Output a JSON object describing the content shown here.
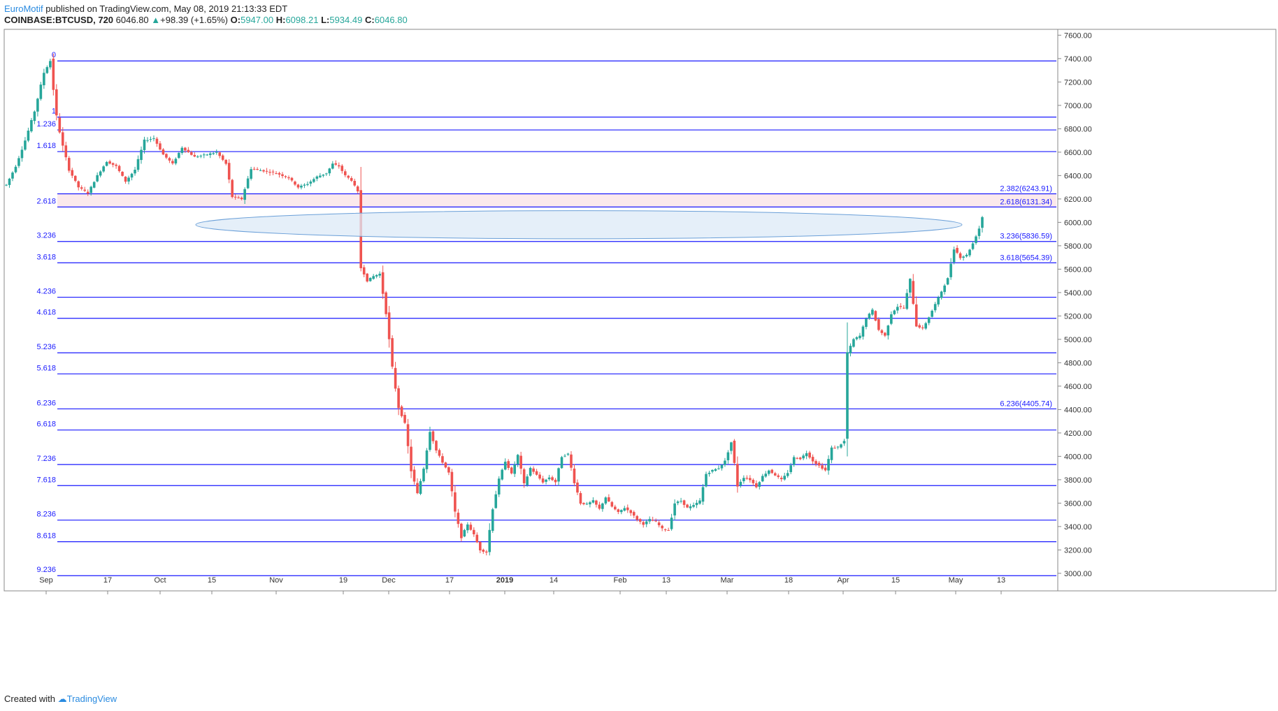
{
  "header": {
    "author": "EuroMotif",
    "published": "published on TradingView.com, May 08, 2019 21:13:33 EDT",
    "symbol": "COINBASE:BTCUSD, 720",
    "last": "6046.80",
    "change": "+98.39 (+1.65%)",
    "open_label": "O:",
    "open": "5947.00",
    "high_label": "H:",
    "high": "6098.21",
    "low_label": "L:",
    "low": "5934.49",
    "close_label": "C:",
    "close": "6046.80"
  },
  "footer": {
    "created_with": "Created with",
    "brand": "TradingView"
  },
  "colors": {
    "up": "#26a69a",
    "down": "#ef5350",
    "fib_line": "#1a1aff",
    "zone_fill": "#fbe9ec",
    "ellipse_fill": "#dceaf7",
    "ellipse_stroke": "#6a9fd8"
  },
  "chart_data": {
    "type": "candlestick",
    "ylim": [
      2850,
      7650
    ],
    "yticks": [
      "7600.00",
      "7400.00",
      "7200.00",
      "7000.00",
      "6800.00",
      "6600.00",
      "6400.00",
      "6200.00",
      "6000.00",
      "5800.00",
      "5600.00",
      "5400.00",
      "5200.00",
      "5000.00",
      "4800.00",
      "4600.00",
      "4400.00",
      "4200.00",
      "4000.00",
      "3800.00",
      "3600.00",
      "3400.00",
      "3200.00",
      "3000.00"
    ],
    "xticks": [
      "Sep",
      "17",
      "Oct",
      "15",
      "Nov",
      "19",
      "Dec",
      "17",
      "2019",
      "14",
      "Feb",
      "13",
      "Mar",
      "18",
      "Apr",
      "15",
      "May",
      "13"
    ],
    "fib_levels": [
      {
        "label": "0",
        "price": 7380
      },
      {
        "label": "1",
        "price": 6900
      },
      {
        "label": "1.236",
        "price": 6790
      },
      {
        "label": "1.618",
        "price": 6605
      },
      {
        "label": "2.618",
        "price": 6131.34
      },
      {
        "label": "3.236",
        "price": 5836.59
      },
      {
        "label": "3.618",
        "price": 5654.39
      },
      {
        "label": "4.236",
        "price": 5360
      },
      {
        "label": "4.618",
        "price": 5180
      },
      {
        "label": "5.236",
        "price": 4885
      },
      {
        "label": "5.618",
        "price": 4705
      },
      {
        "label": "6.236",
        "price": 4405.74
      },
      {
        "label": "6.618",
        "price": 4225
      },
      {
        "label": "7.236",
        "price": 3930
      },
      {
        "label": "7.618",
        "price": 3750
      },
      {
        "label": "8.236",
        "price": 3455
      },
      {
        "label": "8.618",
        "price": 3270
      },
      {
        "label": "9.236",
        "price": 2980
      }
    ],
    "right_labels": [
      {
        "text": "2.382(6243.91)",
        "price": 6243.91
      },
      {
        "text": "2.618(6131.34)",
        "price": 6131.34
      },
      {
        "text": "3.236(5836.59)",
        "price": 5836.59
      },
      {
        "text": "3.618(5654.39)",
        "price": 5654.39
      },
      {
        "text": "6.236(4405.74)",
        "price": 4405.74
      }
    ],
    "zone": {
      "from": 6131.34,
      "to": 6243.91
    },
    "ellipse": {
      "price_top": 6100,
      "price_bottom": 5860
    },
    "path": [
      [
        0,
        6320
      ],
      [
        3,
        6480
      ],
      [
        6,
        6700
      ],
      [
        9,
        6950
      ],
      [
        12,
        7280
      ],
      [
        14,
        7380
      ],
      [
        16,
        6900
      ],
      [
        18,
        6650
      ],
      [
        20,
        6450
      ],
      [
        23,
        6300
      ],
      [
        26,
        6250
      ],
      [
        29,
        6400
      ],
      [
        32,
        6520
      ],
      [
        35,
        6480
      ],
      [
        38,
        6350
      ],
      [
        41,
        6450
      ],
      [
        44,
        6700
      ],
      [
        47,
        6720
      ],
      [
        50,
        6580
      ],
      [
        53,
        6500
      ],
      [
        56,
        6640
      ],
      [
        60,
        6560
      ],
      [
        64,
        6580
      ],
      [
        67,
        6600
      ],
      [
        70,
        6500
      ],
      [
        72,
        6220
      ],
      [
        75,
        6200
      ],
      [
        78,
        6460
      ],
      [
        82,
        6440
      ],
      [
        86,
        6420
      ],
      [
        90,
        6380
      ],
      [
        93,
        6300
      ],
      [
        96,
        6330
      ],
      [
        99,
        6390
      ],
      [
        102,
        6420
      ],
      [
        104,
        6500
      ],
      [
        106,
        6480
      ],
      [
        108,
        6400
      ],
      [
        110,
        6360
      ],
      [
        112,
        6260
      ],
      [
        113,
        5620
      ],
      [
        115,
        5500
      ],
      [
        117,
        5540
      ],
      [
        119,
        5560
      ],
      [
        121,
        5230
      ],
      [
        123,
        4750
      ],
      [
        125,
        4420
      ],
      [
        127,
        4280
      ],
      [
        129,
        3880
      ],
      [
        131,
        3680
      ],
      [
        133,
        3900
      ],
      [
        135,
        4220
      ],
      [
        137,
        4050
      ],
      [
        139,
        3950
      ],
      [
        141,
        3860
      ],
      [
        143,
        3520
      ],
      [
        145,
        3310
      ],
      [
        147,
        3420
      ],
      [
        149,
        3330
      ],
      [
        151,
        3200
      ],
      [
        153,
        3180
      ],
      [
        155,
        3560
      ],
      [
        157,
        3800
      ],
      [
        159,
        3960
      ],
      [
        161,
        3850
      ],
      [
        163,
        4010
      ],
      [
        165,
        3760
      ],
      [
        167,
        3900
      ],
      [
        169,
        3840
      ],
      [
        171,
        3780
      ],
      [
        173,
        3820
      ],
      [
        175,
        3780
      ],
      [
        177,
        4000
      ],
      [
        179,
        4020
      ],
      [
        181,
        3780
      ],
      [
        183,
        3600
      ],
      [
        185,
        3590
      ],
      [
        187,
        3620
      ],
      [
        189,
        3550
      ],
      [
        191,
        3650
      ],
      [
        193,
        3570
      ],
      [
        195,
        3520
      ],
      [
        197,
        3560
      ],
      [
        199,
        3520
      ],
      [
        201,
        3460
      ],
      [
        203,
        3420
      ],
      [
        205,
        3460
      ],
      [
        207,
        3440
      ],
      [
        209,
        3380
      ],
      [
        211,
        3370
      ],
      [
        213,
        3600
      ],
      [
        215,
        3620
      ],
      [
        217,
        3560
      ],
      [
        219,
        3580
      ],
      [
        221,
        3620
      ],
      [
        223,
        3850
      ],
      [
        225,
        3880
      ],
      [
        227,
        3900
      ],
      [
        229,
        3960
      ],
      [
        231,
        4120
      ],
      [
        233,
        3750
      ],
      [
        235,
        3820
      ],
      [
        237,
        3800
      ],
      [
        239,
        3740
      ],
      [
        241,
        3830
      ],
      [
        243,
        3880
      ],
      [
        245,
        3840
      ],
      [
        247,
        3800
      ],
      [
        249,
        3860
      ],
      [
        251,
        3990
      ],
      [
        253,
        3980
      ],
      [
        255,
        4030
      ],
      [
        257,
        3960
      ],
      [
        259,
        3920
      ],
      [
        261,
        3880
      ],
      [
        263,
        4070
      ],
      [
        265,
        4080
      ],
      [
        267,
        4130
      ],
      [
        268,
        4880
      ],
      [
        270,
        5000
      ],
      [
        272,
        5030
      ],
      [
        274,
        5180
      ],
      [
        276,
        5250
      ],
      [
        278,
        5080
      ],
      [
        280,
        5030
      ],
      [
        282,
        5220
      ],
      [
        284,
        5280
      ],
      [
        286,
        5270
      ],
      [
        288,
        5510
      ],
      [
        290,
        5120
      ],
      [
        292,
        5090
      ],
      [
        294,
        5190
      ],
      [
        296,
        5300
      ],
      [
        298,
        5410
      ],
      [
        300,
        5520
      ],
      [
        302,
        5780
      ],
      [
        304,
        5700
      ],
      [
        306,
        5720
      ],
      [
        308,
        5820
      ],
      [
        310,
        5948
      ],
      [
        311,
        6047
      ]
    ]
  }
}
